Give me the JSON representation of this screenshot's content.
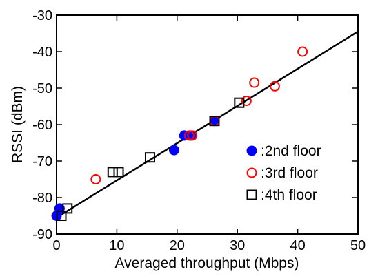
{
  "chart_data": {
    "type": "scatter",
    "title": "",
    "xlabel": "Averaged throughput (Mbps)",
    "ylabel": "RSSI (dBm)",
    "xlim": [
      0,
      50
    ],
    "ylim": [
      -90,
      -30
    ],
    "xticks": [
      0,
      10,
      20,
      30,
      40,
      50
    ],
    "yticks": [
      -90,
      -80,
      -70,
      -60,
      -50,
      -40,
      -30
    ],
    "grid": false,
    "legend_position": "bottom-right",
    "series": [
      {
        "name": ":2nd floor",
        "marker": "filled-circle",
        "color": "#0000ff",
        "points": [
          [
            0,
            -85
          ],
          [
            0.5,
            -83
          ],
          [
            19.5,
            -67
          ],
          [
            21.2,
            -63
          ],
          [
            22.3,
            -63
          ],
          [
            26.2,
            -59
          ]
        ]
      },
      {
        "name": ":3rd floor",
        "marker": "open-circle",
        "color": "#ff0000",
        "points": [
          [
            6.5,
            -75
          ],
          [
            22.0,
            -63
          ],
          [
            22.5,
            -63
          ],
          [
            26.2,
            -59
          ],
          [
            31.5,
            -53.5
          ],
          [
            32.8,
            -48.5
          ],
          [
            36.2,
            -49.5
          ],
          [
            40.8,
            -40
          ]
        ]
      },
      {
        "name": ":4th floor",
        "marker": "open-square",
        "color": "#000000",
        "points": [
          [
            0.8,
            -85
          ],
          [
            1.8,
            -83
          ],
          [
            9.3,
            -73
          ],
          [
            10.3,
            -73
          ],
          [
            15.5,
            -69
          ],
          [
            26.2,
            -59
          ],
          [
            30.3,
            -54
          ]
        ]
      }
    ],
    "fit_line": {
      "color": "#000000",
      "points": [
        [
          0,
          -85.5
        ],
        [
          50,
          -34.5
        ]
      ]
    }
  }
}
